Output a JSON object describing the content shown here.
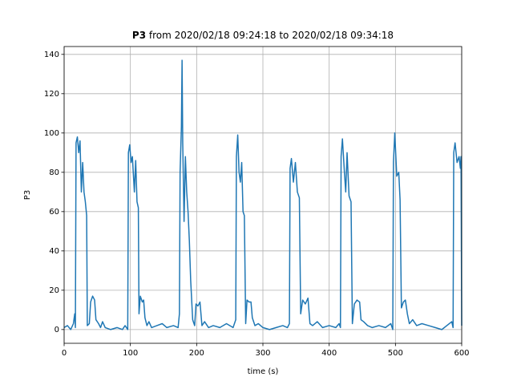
{
  "chart_data": {
    "type": "line",
    "title_parts": [
      "P3",
      "from 2020/02/18 09:24:18 to 2020/02/18 09:34:18"
    ],
    "x_label": "time (s)",
    "y_label": "P3",
    "xlim": [
      0,
      600
    ],
    "xticks": [
      0,
      100,
      200,
      300,
      400,
      500,
      600
    ],
    "ylim": [
      -7,
      144
    ],
    "yticks": [
      0,
      20,
      40,
      60,
      80,
      100,
      120,
      140
    ],
    "grid": true,
    "x": [
      0,
      5,
      10,
      14,
      16,
      17,
      18,
      20,
      22,
      24,
      26,
      28,
      30,
      32,
      34,
      35,
      38,
      40,
      43,
      46,
      48,
      52,
      55,
      58,
      62,
      70,
      80,
      88,
      92,
      96,
      97,
      99,
      101,
      103,
      106,
      108,
      110,
      112,
      113,
      115,
      118,
      120,
      122,
      125,
      128,
      132,
      140,
      148,
      155,
      165,
      172,
      174,
      175,
      177,
      178,
      179,
      181,
      183,
      185,
      187,
      189,
      191,
      194,
      197,
      199,
      202,
      205,
      208,
      212,
      218,
      225,
      235,
      245,
      255,
      259,
      260,
      262,
      264,
      266,
      268,
      270,
      272,
      274,
      276,
      279,
      282,
      284,
      288,
      293,
      300,
      310,
      320,
      330,
      337,
      340,
      341,
      343,
      346,
      349,
      352,
      355,
      357,
      360,
      364,
      368,
      371,
      375,
      382,
      390,
      400,
      410,
      415,
      417,
      418,
      420,
      423,
      425,
      427,
      430,
      433,
      435,
      438,
      442,
      446,
      448,
      452,
      458,
      465,
      475,
      485,
      493,
      496,
      497,
      499,
      502,
      505,
      507,
      509,
      512,
      515,
      518,
      521,
      526,
      532,
      540,
      550,
      560,
      570,
      585,
      587,
      588,
      590,
      593,
      596,
      598,
      599,
      600
    ],
    "series": [
      {
        "name": "P3",
        "color": "#1f77b4",
        "values": [
          1,
          2,
          0,
          3,
          8,
          1,
          95,
          98,
          90,
          96,
          70,
          85,
          70,
          65,
          58,
          2,
          3,
          14,
          17,
          15,
          5,
          3,
          1,
          4,
          1,
          0,
          1,
          0,
          2,
          0,
          90,
          94,
          85,
          88,
          70,
          86,
          65,
          62,
          8,
          17,
          14,
          15,
          6,
          2,
          4,
          1,
          2,
          3,
          1,
          2,
          1,
          8,
          80,
          103,
          137,
          95,
          55,
          88,
          70,
          60,
          45,
          25,
          5,
          2,
          13,
          12,
          14,
          2,
          4,
          1,
          2,
          1,
          3,
          1,
          5,
          88,
          99,
          80,
          75,
          85,
          60,
          58,
          3,
          15,
          14,
          14,
          6,
          2,
          3,
          1,
          0,
          1,
          2,
          1,
          3,
          82,
          87,
          75,
          85,
          70,
          67,
          8,
          15,
          13,
          16,
          3,
          2,
          4,
          1,
          2,
          1,
          3,
          1,
          88,
          97,
          80,
          70,
          90,
          68,
          65,
          3,
          13,
          15,
          14,
          5,
          4,
          2,
          1,
          2,
          1,
          3,
          0,
          85,
          100,
          78,
          80,
          66,
          11,
          14,
          15,
          8,
          3,
          5,
          2,
          3,
          2,
          1,
          0,
          4,
          1,
          90,
          95,
          85,
          88,
          82,
          88,
          2
        ]
      }
    ]
  }
}
